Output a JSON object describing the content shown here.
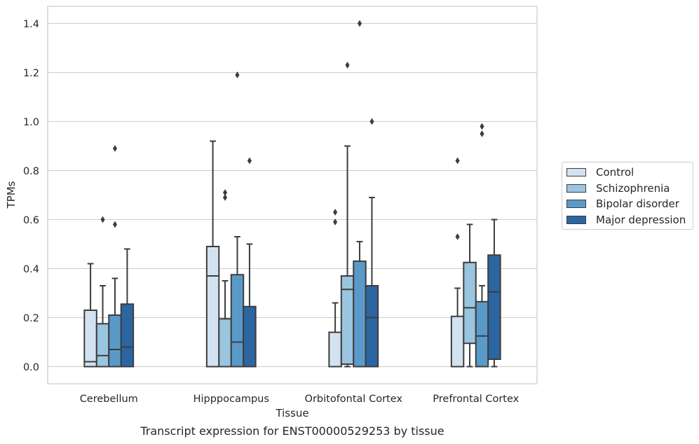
{
  "chart_data": {
    "type": "box",
    "xlabel": "Tissue",
    "ylabel": "TPMs",
    "caption": "Transcript expression for ENST00000529253 by tissue",
    "categories": [
      "Cerebellum",
      "Hipppocampus",
      "Orbitofontal Cortex",
      "Prefrontal Cortex"
    ],
    "ylim": [
      -0.07,
      1.47
    ],
    "yticks": [
      "0.0",
      "0.2",
      "0.4",
      "0.6",
      "0.8",
      "1.0",
      "1.2",
      "1.4"
    ],
    "grid": true,
    "legend_placement": "right",
    "series": [
      {
        "name": "Control",
        "color": "#d2e2f1",
        "boxes": [
          {
            "whislo": 0.0,
            "q1": 0.0,
            "med": 0.02,
            "q3": 0.23,
            "whishi": 0.42,
            "fliers": []
          },
          {
            "whislo": 0.0,
            "q1": 0.0,
            "med": 0.37,
            "q3": 0.49,
            "whishi": 0.92,
            "fliers": []
          },
          {
            "whislo": 0.0,
            "q1": 0.0,
            "med": 0.0,
            "q3": 0.14,
            "whishi": 0.26,
            "fliers": [
              0.59,
              0.63
            ]
          },
          {
            "whislo": 0.0,
            "q1": 0.0,
            "med": 0.0,
            "q3": 0.205,
            "whishi": 0.32,
            "fliers": [
              0.53,
              0.84
            ]
          }
        ]
      },
      {
        "name": "Schizophrenia",
        "color": "#9ac5df",
        "boxes": [
          {
            "whislo": 0.0,
            "q1": 0.0,
            "med": 0.045,
            "q3": 0.175,
            "whishi": 0.33,
            "fliers": [
              0.6
            ]
          },
          {
            "whislo": 0.0,
            "q1": 0.0,
            "med": 0.0,
            "q3": 0.195,
            "whishi": 0.35,
            "fliers": [
              0.69,
              0.71
            ]
          },
          {
            "whislo": 0.0,
            "q1": 0.01,
            "med": 0.315,
            "q3": 0.37,
            "whishi": 0.9,
            "fliers": [
              1.23
            ]
          },
          {
            "whislo": 0.0,
            "q1": 0.095,
            "med": 0.24,
            "q3": 0.425,
            "whishi": 0.58,
            "fliers": []
          }
        ]
      },
      {
        "name": "Bipolar disorder",
        "color": "#5a9ac9",
        "boxes": [
          {
            "whislo": 0.0,
            "q1": 0.0,
            "med": 0.07,
            "q3": 0.21,
            "whishi": 0.36,
            "fliers": [
              0.58,
              0.89
            ]
          },
          {
            "whislo": 0.0,
            "q1": 0.0,
            "med": 0.1,
            "q3": 0.375,
            "whishi": 0.53,
            "fliers": [
              1.19
            ]
          },
          {
            "whislo": 0.0,
            "q1": 0.0,
            "med": 0.0,
            "q3": 0.43,
            "whishi": 0.51,
            "fliers": [
              1.4
            ]
          },
          {
            "whislo": 0.0,
            "q1": 0.0,
            "med": 0.125,
            "q3": 0.265,
            "whishi": 0.33,
            "fliers": [
              0.95,
              0.98
            ]
          }
        ]
      },
      {
        "name": "Major depression",
        "color": "#2b66a2",
        "boxes": [
          {
            "whislo": 0.0,
            "q1": 0.0,
            "med": 0.08,
            "q3": 0.255,
            "whishi": 0.48,
            "fliers": []
          },
          {
            "whislo": 0.0,
            "q1": 0.0,
            "med": 0.0,
            "q3": 0.245,
            "whishi": 0.5,
            "fliers": [
              0.84
            ]
          },
          {
            "whislo": 0.0,
            "q1": 0.0,
            "med": 0.2,
            "q3": 0.33,
            "whishi": 0.69,
            "fliers": [
              1.0
            ]
          },
          {
            "whislo": 0.0,
            "q1": 0.03,
            "med": 0.305,
            "q3": 0.455,
            "whishi": 0.6,
            "fliers": []
          }
        ]
      }
    ]
  }
}
